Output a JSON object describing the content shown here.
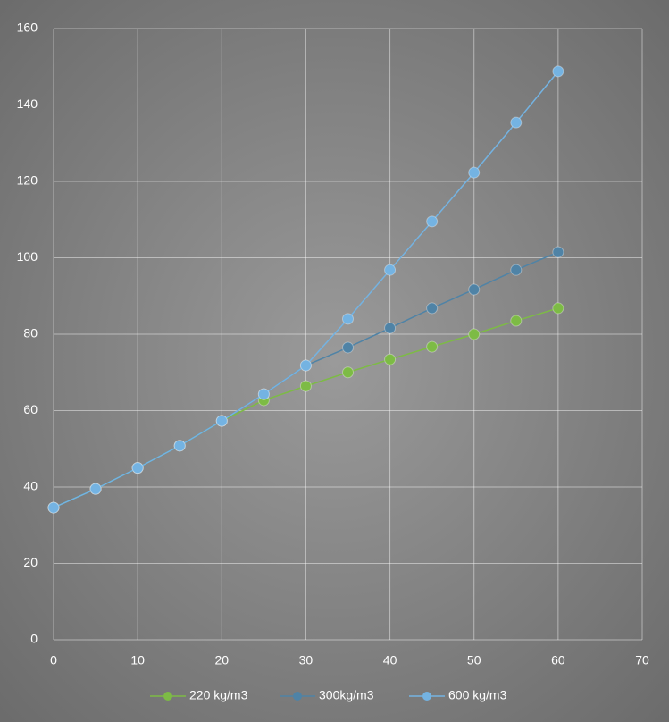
{
  "chart_data": {
    "type": "line",
    "x": [
      0,
      5,
      10,
      15,
      20,
      25,
      30,
      35,
      40,
      45,
      50,
      55,
      60
    ],
    "series": [
      {
        "name": "220 kg/m3",
        "color": "#7dbb45",
        "values": [
          34.6,
          39.5,
          45,
          50.8,
          57.3,
          62.7,
          66.4,
          70,
          73.4,
          76.7,
          80,
          83.5,
          86.8
        ]
      },
      {
        "name": "300kg/m3",
        "color": "#4f83a6",
        "values": [
          34.6,
          39.5,
          45,
          50.8,
          57.3,
          64.3,
          71.8,
          76.5,
          81.6,
          86.8,
          91.7,
          96.8,
          101.5
        ]
      },
      {
        "name": "600 kg/m3",
        "color": "#74b3e2",
        "values": [
          34.6,
          39.5,
          45,
          50.8,
          57.3,
          64.3,
          71.8,
          84,
          96.8,
          109.5,
          122.3,
          135.4,
          148.8
        ]
      }
    ],
    "xlim": [
      0,
      70
    ],
    "xticks": [
      0,
      10,
      20,
      30,
      40,
      50,
      60,
      70
    ],
    "ylim": [
      0,
      160
    ],
    "yticks": [
      0,
      20,
      40,
      60,
      80,
      100,
      120,
      140,
      160
    ],
    "grid": true,
    "legend": "bottom"
  }
}
